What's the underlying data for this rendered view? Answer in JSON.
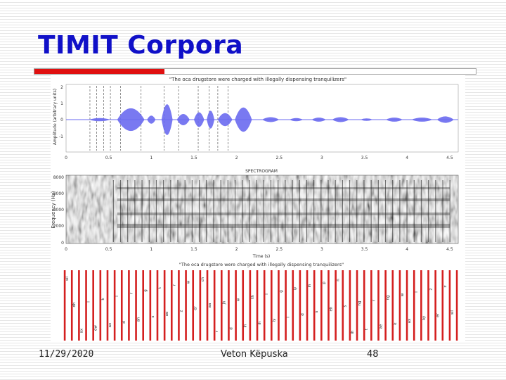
{
  "slide": {
    "title": "TIMIT Corpora",
    "date": "11/29/2020",
    "author": "Veton Këpuska",
    "page_number": "48"
  },
  "figure": {
    "waveform_caption": "\"The oca drugstore were charged with illegally dispensing tranquilizers\"",
    "waveform_ylabel": "Amplitude (arbitrary units)",
    "spectrogram_title": "SPECTROGRAM",
    "spectrogram_ylabel": "Frequency (Hz)",
    "spectrogram_xlabel": "Time (s)",
    "phone_caption": "\"The oca drugstore were charged with illegally dispensing tranquilizers\"",
    "time_ticks": [
      "0",
      "0.5",
      "1",
      "1.5",
      "2",
      "2.5",
      "3",
      "3.5",
      "4",
      "4.5"
    ],
    "waveform_yticks": [
      "2",
      "1",
      "0",
      "-1"
    ],
    "spectrogram_yticks": [
      "8000",
      "6000",
      "4000",
      "2000",
      "0"
    ],
    "phones": [
      "sil",
      "dh",
      "ax",
      "l",
      "ow",
      "k",
      "ax",
      "l",
      "d",
      "r",
      "ah",
      "g",
      "s",
      "t",
      "ao",
      "r",
      "z",
      "w",
      "er",
      "ch",
      "aa",
      "r",
      "jh",
      "d",
      "w",
      "ih",
      "th",
      "ih",
      "l",
      "iy",
      "g",
      "l",
      "iy",
      "d",
      "ih",
      "s",
      "p",
      "eh",
      "n",
      "s",
      "ih",
      "ng",
      "t",
      "r",
      "ae",
      "ng",
      "k",
      "w",
      "ax",
      "l",
      "ay",
      "z",
      "er",
      "z",
      "sil"
    ]
  },
  "colors": {
    "title": "#1010c8",
    "accent_red": "#e01010",
    "waveform": "#6a6af0",
    "boundary": "#d42020"
  }
}
